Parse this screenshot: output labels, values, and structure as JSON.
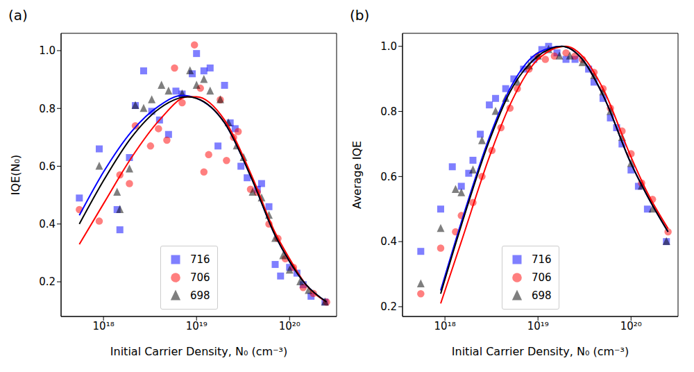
{
  "chart_data": [
    {
      "type": "scatter",
      "title": "(a)",
      "xlabel": "Initial Carrier Density, N₀ (cm⁻³)",
      "ylabel": "IQE(N₀)",
      "log": "x",
      "legend": "bottom",
      "grid": false,
      "xlim": [
        3.5e+17,
        3.2e+20
      ],
      "xticks": [
        {
          "value": 1e+18,
          "label": "10¹⁸"
        },
        {
          "value": 1e+19,
          "label": "10¹⁹"
        },
        {
          "value": 1e+20,
          "label": "10²⁰"
        }
      ],
      "ylim": [
        0.08,
        1.06
      ],
      "yticks": [
        0.2,
        0.4,
        0.6,
        0.8,
        {
          "value": 1,
          "label": "1.0"
        }
      ],
      "series": [
        {
          "name": "716",
          "color": "#0000ff",
          "marker": "square",
          "x": [
            5.5e+17,
            9e+17,
            1.4e+18,
            1.5e+18,
            1.9e+18,
            2.2e+18,
            2.7e+18,
            3.3e+18,
            4e+18,
            5e+18,
            6e+18,
            7e+18,
            9e+18,
            1e+19,
            1.2e+19,
            1.4e+19,
            1.7e+19,
            2e+19,
            2.3e+19,
            2.6e+19,
            3e+19,
            3.5e+19,
            4.5e+19,
            5e+19,
            6e+19,
            7e+19,
            8e+19,
            1e+20,
            1.2e+20,
            1.4e+20,
            1.7e+20,
            2.4e+20
          ],
          "values": [
            0.49,
            0.66,
            0.45,
            0.38,
            0.63,
            0.81,
            0.93,
            0.79,
            0.76,
            0.71,
            0.86,
            0.85,
            0.92,
            0.99,
            0.93,
            0.94,
            0.67,
            0.88,
            0.75,
            0.73,
            0.6,
            0.56,
            0.52,
            0.54,
            0.46,
            0.26,
            0.22,
            0.25,
            0.23,
            0.19,
            0.15,
            0.13
          ],
          "fit_x": [
            5.5e+17,
            1e+18,
            2e+18,
            4e+18,
            7e+18,
            1e+19,
            2e+19,
            4e+19,
            7e+19,
            1e+20,
            1.5e+20,
            2.5e+20
          ],
          "fit_values": [
            0.43,
            0.58,
            0.72,
            0.81,
            0.845,
            0.835,
            0.75,
            0.55,
            0.36,
            0.27,
            0.19,
            0.13
          ]
        },
        {
          "name": "706",
          "color": "#ff0000",
          "marker": "circle",
          "x": [
            5.5e+17,
            9e+17,
            1.5e+18,
            1.9e+18,
            2.2e+18,
            3.2e+18,
            3.9e+18,
            4.8e+18,
            5.8e+18,
            7e+18,
            9.5e+18,
            1.1e+19,
            1.2e+19,
            1.35e+19,
            1.8e+19,
            2.1e+19,
            2.5e+19,
            2.8e+19,
            3.8e+19,
            4.5e+19,
            6e+19,
            7.5e+19,
            9e+19,
            1.1e+20,
            1.4e+20,
            1.8e+20,
            2.5e+20
          ],
          "values": [
            0.45,
            0.41,
            0.57,
            0.54,
            0.74,
            0.67,
            0.73,
            0.69,
            0.94,
            0.82,
            1.02,
            0.87,
            0.58,
            0.64,
            0.83,
            0.62,
            0.7,
            0.72,
            0.52,
            0.51,
            0.4,
            0.35,
            0.28,
            0.25,
            0.18,
            0.16,
            0.13
          ],
          "fit_x": [
            5.5e+17,
            1e+18,
            2e+18,
            4e+18,
            8e+18,
            1e+19,
            2e+19,
            4e+19,
            7e+19,
            1e+20,
            1.5e+20,
            2.5e+20
          ],
          "fit_values": [
            0.33,
            0.47,
            0.63,
            0.76,
            0.84,
            0.84,
            0.76,
            0.56,
            0.37,
            0.28,
            0.19,
            0.13
          ]
        },
        {
          "name": "698",
          "color": "#000000",
          "marker": "triangle",
          "x": [
            9e+17,
            1.4e+18,
            1.5e+18,
            1.9e+18,
            2.2e+18,
            2.7e+18,
            3.3e+18,
            4.2e+18,
            5e+18,
            7e+18,
            8.5e+18,
            1e+19,
            1.2e+19,
            1.4e+19,
            1.8e+19,
            2.2e+19,
            2.7e+19,
            3.2e+19,
            4e+19,
            5e+19,
            6e+19,
            7e+19,
            8.5e+19,
            1e+20,
            1.3e+20,
            1.6e+20,
            2.4e+20
          ],
          "values": [
            0.6,
            0.51,
            0.45,
            0.59,
            0.81,
            0.8,
            0.83,
            0.88,
            0.86,
            0.85,
            0.93,
            0.88,
            0.9,
            0.86,
            0.83,
            0.75,
            0.67,
            0.63,
            0.51,
            0.49,
            0.43,
            0.35,
            0.29,
            0.24,
            0.2,
            0.17,
            0.13
          ],
          "fit_x": [
            5.5e+17,
            1e+18,
            2e+18,
            4e+18,
            8e+18,
            1e+19,
            2e+19,
            4e+19,
            7e+19,
            1e+20,
            1.5e+20,
            2.5e+20
          ],
          "fit_values": [
            0.4,
            0.55,
            0.7,
            0.8,
            0.84,
            0.835,
            0.75,
            0.55,
            0.36,
            0.27,
            0.19,
            0.13
          ]
        }
      ]
    },
    {
      "type": "scatter",
      "title": "(b)",
      "xlabel": "Initial Carrier Density, N₀ (cm⁻³)",
      "ylabel": "Average IQE",
      "log": "x",
      "legend": "bottom",
      "grid": false,
      "xlim": [
        3.5e+17,
        3.2e+20
      ],
      "xticks": [
        {
          "value": 1e+18,
          "label": "10¹⁸"
        },
        {
          "value": 1e+19,
          "label": "10¹⁹"
        },
        {
          "value": 1e+20,
          "label": "10²⁰"
        }
      ],
      "ylim": [
        0.17,
        1.04
      ],
      "yticks": [
        0.2,
        0.4,
        0.6,
        0.8,
        {
          "value": 1,
          "label": "1.0"
        }
      ],
      "series": [
        {
          "name": "716",
          "color": "#0000ff",
          "marker": "square",
          "x": [
            5.5e+17,
            9e+17,
            1.2e+18,
            1.5e+18,
            1.8e+18,
            2e+18,
            2.4e+18,
            3e+18,
            3.5e+18,
            4.5e+18,
            5.5e+18,
            7e+18,
            9e+18,
            1.1e+19,
            1.3e+19,
            1.6e+19,
            2e+19,
            2.5e+19,
            3.5e+19,
            4e+19,
            5e+19,
            6e+19,
            7e+19,
            8e+19,
            1e+20,
            1.2e+20,
            1.5e+20,
            2.4e+20
          ],
          "values": [
            0.37,
            0.5,
            0.63,
            0.57,
            0.61,
            0.65,
            0.73,
            0.82,
            0.84,
            0.87,
            0.9,
            0.93,
            0.96,
            0.99,
            1.0,
            0.98,
            0.96,
            0.96,
            0.93,
            0.89,
            0.84,
            0.78,
            0.75,
            0.7,
            0.62,
            0.57,
            0.5,
            0.4
          ],
          "fit_x": [
            9e+17,
            1.5e+18,
            3e+18,
            5e+18,
            1e+19,
            1.8e+19,
            3e+19,
            5e+19,
            1e+20,
            1.5e+20,
            2.5e+20
          ],
          "fit_values": [
            0.25,
            0.46,
            0.72,
            0.87,
            0.98,
            1.0,
            0.96,
            0.85,
            0.64,
            0.54,
            0.43
          ]
        },
        {
          "name": "706",
          "color": "#ff0000",
          "marker": "circle",
          "x": [
            5.5e+17,
            9e+17,
            1.3e+18,
            1.5e+18,
            2e+18,
            2.5e+18,
            3.2e+18,
            4e+18,
            5e+18,
            6e+18,
            8e+18,
            1e+19,
            1.2e+19,
            1.5e+19,
            2e+19,
            2.5e+19,
            3e+19,
            4e+19,
            5e+19,
            6e+19,
            8e+19,
            1e+20,
            1.3e+20,
            1.7e+20,
            2.5e+20
          ],
          "values": [
            0.24,
            0.38,
            0.43,
            0.48,
            0.52,
            0.6,
            0.68,
            0.75,
            0.81,
            0.87,
            0.93,
            0.97,
            0.96,
            0.97,
            0.98,
            0.97,
            0.96,
            0.92,
            0.87,
            0.81,
            0.74,
            0.67,
            0.58,
            0.53,
            0.43
          ],
          "fit_x": [
            9e+17,
            1.5e+18,
            3e+18,
            5e+18,
            1e+19,
            2e+19,
            3e+19,
            5e+19,
            1e+20,
            1.5e+20,
            2.5e+20
          ],
          "fit_values": [
            0.21,
            0.4,
            0.66,
            0.82,
            0.96,
            1.0,
            0.97,
            0.87,
            0.66,
            0.55,
            0.44
          ]
        },
        {
          "name": "698",
          "color": "#000000",
          "marker": "triangle",
          "x": [
            5.5e+17,
            9e+17,
            1.3e+18,
            1.5e+18,
            2e+18,
            2.5e+18,
            3.5e+18,
            4.5e+18,
            6e+18,
            8e+18,
            1e+19,
            1.3e+19,
            1.7e+19,
            2.2e+19,
            3e+19,
            4e+19,
            5e+19,
            6e+19,
            8e+19,
            1e+20,
            1.3e+20,
            1.7e+20,
            2.4e+20
          ],
          "values": [
            0.27,
            0.44,
            0.56,
            0.55,
            0.62,
            0.71,
            0.8,
            0.84,
            0.89,
            0.94,
            0.97,
            0.99,
            0.97,
            0.97,
            0.95,
            0.91,
            0.86,
            0.8,
            0.72,
            0.64,
            0.57,
            0.5,
            0.4
          ],
          "fit_x": [
            9e+17,
            1.5e+18,
            3e+18,
            5e+18,
            1e+19,
            1.8e+19,
            3e+19,
            5e+19,
            1e+20,
            1.5e+20,
            2.5e+20
          ],
          "fit_values": [
            0.24,
            0.45,
            0.71,
            0.86,
            0.97,
            1.0,
            0.96,
            0.85,
            0.64,
            0.54,
            0.43
          ]
        }
      ]
    }
  ]
}
